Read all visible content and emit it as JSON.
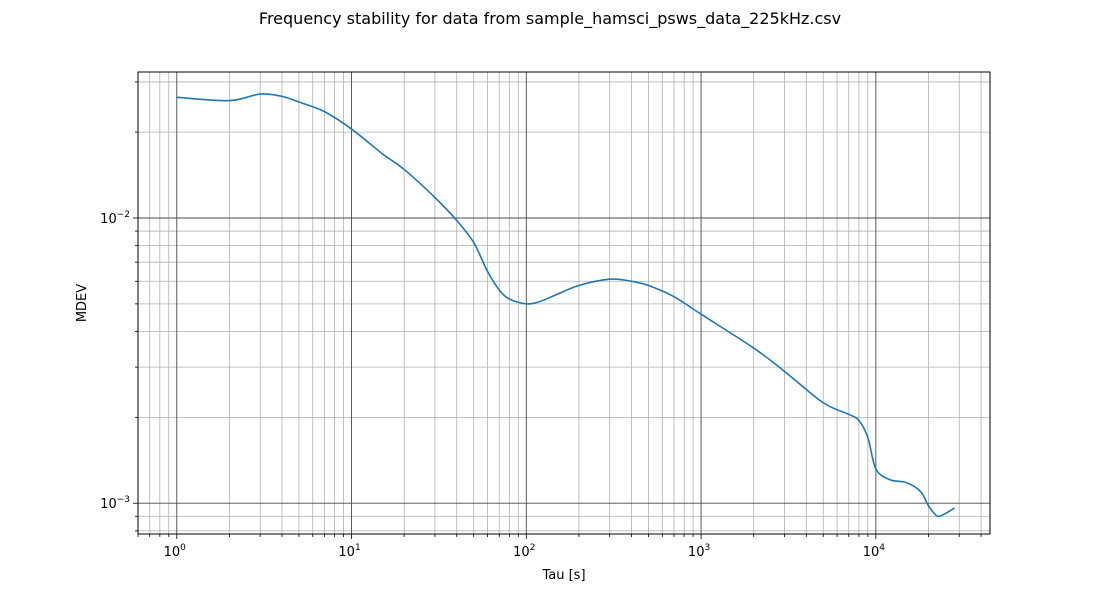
{
  "chart_data": {
    "type": "line",
    "title": "Frequency stability for data from sample_hamsci_psws_data_225kHz.csv",
    "xlabel": "Tau [s]",
    "ylabel": "MDEV",
    "xscale": "log",
    "yscale": "log",
    "xlim": [
      0.6,
      45000
    ],
    "ylim": [
      0.00078,
      0.0325
    ],
    "grid": true,
    "x_ticks": [
      {
        "value": 1,
        "base": "10",
        "exp": "0"
      },
      {
        "value": 10,
        "base": "10",
        "exp": "1"
      },
      {
        "value": 100,
        "base": "10",
        "exp": "2"
      },
      {
        "value": 1000,
        "base": "10",
        "exp": "3"
      },
      {
        "value": 10000,
        "base": "10",
        "exp": "4"
      }
    ],
    "y_ticks": [
      {
        "value": 0.01,
        "base": "10",
        "exp": "−2"
      },
      {
        "value": 0.001,
        "base": "10",
        "exp": "−3"
      }
    ],
    "series": [
      {
        "color": "#1f77b4",
        "x": [
          1,
          2,
          3,
          4,
          5,
          7,
          10,
          15,
          20,
          30,
          40,
          50,
          60,
          70,
          80,
          100,
          120,
          150,
          200,
          300,
          400,
          500,
          700,
          1000,
          2000,
          3000,
          5000,
          7000,
          8000,
          9000,
          10000,
          12000,
          15000,
          18000,
          20000,
          22000,
          23000,
          25000,
          28000
        ],
        "y": [
          0.0265,
          0.0258,
          0.0272,
          0.0267,
          0.0255,
          0.0236,
          0.0205,
          0.0168,
          0.0148,
          0.0118,
          0.0098,
          0.0082,
          0.0065,
          0.0056,
          0.0052,
          0.005,
          0.0051,
          0.0054,
          0.0058,
          0.0061,
          0.006,
          0.0058,
          0.0053,
          0.0046,
          0.0035,
          0.0029,
          0.00225,
          0.00205,
          0.00195,
          0.0017,
          0.00132,
          0.00121,
          0.00118,
          0.0011,
          0.00098,
          0.00091,
          0.0009,
          0.00092,
          0.00096
        ]
      }
    ]
  }
}
